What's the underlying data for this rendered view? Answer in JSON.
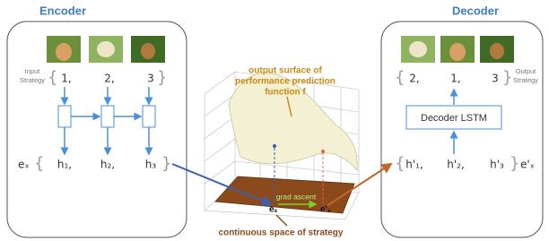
{
  "encoder": {
    "title": "Encoder",
    "input_label": [
      "Input",
      "Strategy"
    ],
    "inputs": [
      "1,",
      "2,",
      "3"
    ],
    "embedding": "eₓ",
    "hidden": [
      "h₁,",
      "h₂,",
      "h₃"
    ]
  },
  "decoder": {
    "title": "Decoder",
    "output_label": [
      "Output",
      "Strategy"
    ],
    "outputs": [
      "2,",
      "1,",
      "3"
    ],
    "lstm": "Decoder LSTM",
    "embedding": "e'ₓ",
    "hidden": [
      "h'₁,",
      "h'₂,",
      "h'₃"
    ]
  },
  "plot": {
    "surface_label": [
      "output surface of",
      "performance prediction",
      "function f"
    ],
    "grad_label": "grad ascent",
    "start_point": "eₓ",
    "end_point": "e'ₓ",
    "space_label": "continuous space of strategy"
  }
}
